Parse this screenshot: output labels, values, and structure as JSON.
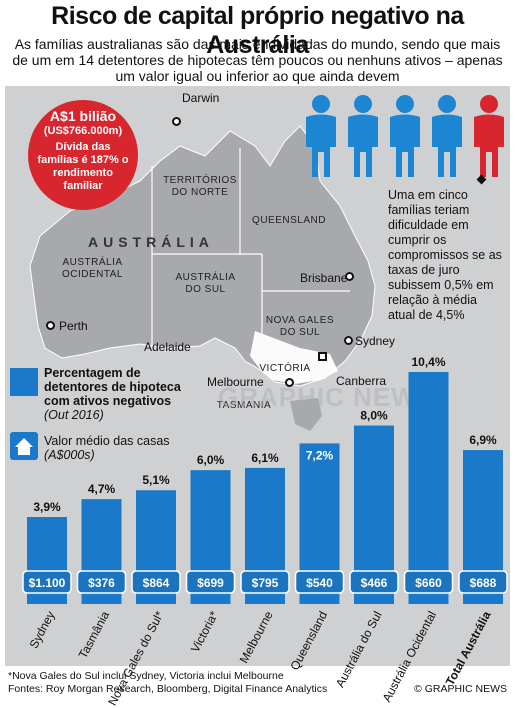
{
  "header": {
    "title": "Risco de capital próprio negativo na Austrália",
    "subtitle": "As famílias australianas são das mais endividadas do mundo, sendo que mais de um em 14 detentores de hipotecas têm poucos ou nenhuns ativos – apenas um valor igual ou inferior ao que ainda devem"
  },
  "stat": {
    "big": "A$1 bilião",
    "sub": "(US$766.000m)",
    "body": "Dívida das famílias é 187% o rendimento familiar"
  },
  "map": {
    "country": "AUSTRÁLIA",
    "regions": [
      "TERRITÓRIOS DO NORTE",
      "QUEENSLAND",
      "AUSTRÁLIA OCIDENTAL",
      "AUSTRÁLIA DO SUL",
      "NOVA GALES DO SUL",
      "VICTÓRIA",
      "TASMANIA"
    ],
    "cities": [
      "Darwin",
      "Brisbane",
      "Perth",
      "Adelaide",
      "Sydney",
      "Canberra",
      "Melbourne"
    ],
    "watermark": "GRAPHIC NEWS"
  },
  "note": "Uma em cinco famílias teriam dificuldade em cumprir os compromissos se as taxas de juro subissem 0,5% em relação à média atual de 4,5%",
  "legend": {
    "bars_label": "Percentagem de detentores de hipoteca com ativos negativos",
    "bars_date": "(Out 2016)",
    "house_label": "Valor médio das casas",
    "house_unit": "(A$000s)"
  },
  "chart_data": {
    "type": "bar",
    "title": "Percentagem de detentores de hipoteca com ativos negativos (Out 2016)",
    "categories": [
      "Sydney",
      "Tasmânia",
      "Nova Gales do Sul*",
      "Victoria*",
      "Melbourne",
      "Queensland",
      "Austrália do Sul",
      "Austrália Ocidental",
      "Total Austrália"
    ],
    "values": [
      3.9,
      4.7,
      5.1,
      6.0,
      6.1,
      7.2,
      8.0,
      10.4,
      6.9
    ],
    "value_labels": [
      "3,9%",
      "4,7%",
      "5,1%",
      "6,0%",
      "6,1%",
      "7,2%",
      "8,0%",
      "10,4%",
      "6,9%"
    ],
    "secondary_series": {
      "name": "Valor médio das casas (A$000s)",
      "values": [
        1100,
        376,
        864,
        699,
        795,
        540,
        466,
        660,
        688
      ],
      "labels": [
        "$1.100",
        "$376",
        "$864",
        "$699",
        "$795",
        "$540",
        "$466",
        "$660",
        "$688"
      ]
    },
    "ylim": [
      0,
      10.4
    ],
    "colors": {
      "bar": "#1a7ac9",
      "total_bar": "#1a7ac9",
      "value_badge": "#1b74bd",
      "highlight_person": "#d7262e",
      "person": "#1d86d2"
    }
  },
  "footer": {
    "footnote": "*Nova Gales do Sul inclui Sydney, Victoria inclui Melbourne",
    "sources": "Fontes: Roy Morgan Research, Bloomberg, Digital Finance Analytics",
    "credit": "© GRAPHIC NEWS"
  }
}
